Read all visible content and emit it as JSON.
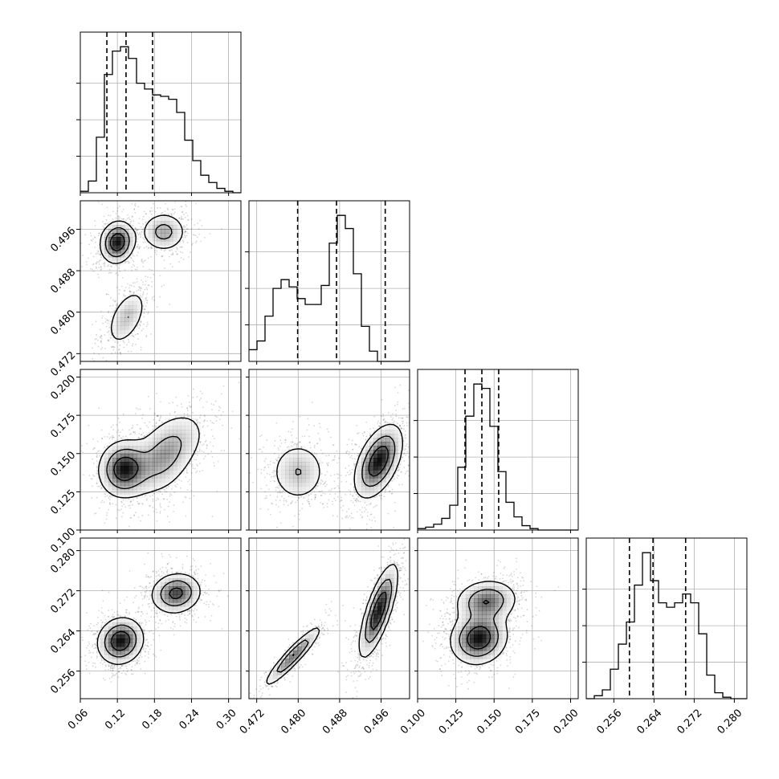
{
  "chart_data": {
    "type": "corner",
    "parameters": [
      {
        "index": 0,
        "range": [
          0.06,
          0.32
        ],
        "ticks": [
          0.06,
          0.12,
          0.18,
          0.24,
          0.3
        ],
        "tick_labels": [
          "0.06",
          "0.12",
          "0.18",
          "0.24",
          "0.30"
        ],
        "quantiles": [
          0.103,
          0.134,
          0.177
        ]
      },
      {
        "index": 1,
        "range": [
          0.4705,
          0.5015
        ],
        "ticks": [
          0.472,
          0.48,
          0.488,
          0.496
        ],
        "tick_labels": [
          "0.472",
          "0.480",
          "0.488",
          "0.496"
        ],
        "quantiles": [
          0.4799,
          0.4874,
          0.4968
        ]
      },
      {
        "index": 2,
        "range": [
          0.1,
          0.205
        ],
        "ticks": [
          0.1,
          0.125,
          0.15,
          0.175,
          0.2
        ],
        "tick_labels": [
          "0.100",
          "0.125",
          "0.150",
          "0.175",
          "0.200"
        ],
        "quantiles": [
          0.131,
          0.142,
          0.153
        ]
      },
      {
        "index": 3,
        "range": [
          0.2505,
          0.2825
        ],
        "ticks": [
          0.256,
          0.264,
          0.272,
          0.28
        ],
        "tick_labels": [
          "0.256",
          "0.264",
          "0.272",
          "0.280"
        ],
        "quantiles": [
          0.2591,
          0.2638,
          0.2703
        ]
      }
    ],
    "histograms": [
      {
        "param": 0,
        "bins": 20,
        "counts": [
          1,
          8,
          38,
          81,
          97,
          100,
          92,
          75,
          71,
          67,
          66,
          64,
          55,
          36,
          22,
          12,
          7,
          3,
          1,
          0
        ]
      },
      {
        "param": 1,
        "bins": 20,
        "counts": [
          8,
          14,
          31,
          50,
          56,
          51,
          43,
          39,
          39,
          52,
          81,
          100,
          91,
          60,
          24,
          7,
          0,
          0,
          0,
          0
        ]
      },
      {
        "param": 2,
        "bins": 20,
        "counts": [
          1,
          2,
          4,
          8,
          17,
          43,
          78,
          100,
          97,
          71,
          40,
          19,
          9,
          3,
          1,
          0,
          0,
          0,
          0,
          0
        ]
      },
      {
        "param": 3,
        "bins": 20,
        "counts": [
          0,
          2,
          6,
          20,
          37,
          52,
          77,
          99,
          80,
          65,
          62,
          65,
          71,
          65,
          44,
          16,
          4,
          1,
          0,
          0
        ]
      }
    ],
    "joint_components": {
      "p0_p1": [
        {
          "weight": 0.42,
          "mean": [
            0.12,
            0.4935
          ],
          "sd": [
            0.015,
            0.0022
          ],
          "corr": 0.1
        },
        {
          "weight": 0.3,
          "mean": [
            0.195,
            0.4955
          ],
          "sd": [
            0.02,
            0.0021
          ],
          "corr": 0.0
        },
        {
          "weight": 0.28,
          "mean": [
            0.135,
            0.479
          ],
          "sd": [
            0.018,
            0.0031
          ],
          "corr": 0.5
        }
      ],
      "p0_p2": [
        {
          "weight": 0.45,
          "mean": [
            0.13,
            0.14
          ],
          "sd": [
            0.022,
            0.01
          ],
          "corr": 0.05
        },
        {
          "weight": 0.35,
          "mean": [
            0.19,
            0.145
          ],
          "sd": [
            0.028,
            0.013
          ],
          "corr": 0.3
        },
        {
          "weight": 0.2,
          "mean": [
            0.22,
            0.16
          ],
          "sd": [
            0.03,
            0.012
          ],
          "corr": 0.3
        }
      ],
      "p1_p2": [
        {
          "weight": 0.35,
          "mean": [
            0.48,
            0.138
          ],
          "sd": [
            0.003,
            0.011
          ],
          "corr": 0.0
        },
        {
          "weight": 0.65,
          "mean": [
            0.4955,
            0.145
          ],
          "sd": [
            0.0025,
            0.013
          ],
          "corr": 0.5
        }
      ],
      "p0_p3": [
        {
          "weight": 0.55,
          "mean": [
            0.125,
            0.262
          ],
          "sd": [
            0.02,
            0.0025
          ],
          "corr": 0.1
        },
        {
          "weight": 0.45,
          "mean": [
            0.215,
            0.2715
          ],
          "sd": [
            0.022,
            0.0022
          ],
          "corr": 0.1
        }
      ],
      "p1_p3": [
        {
          "weight": 0.3,
          "mean": [
            0.479,
            0.259
          ],
          "sd": [
            0.003,
            0.0033
          ],
          "corr": 0.93
        },
        {
          "weight": 0.7,
          "mean": [
            0.4955,
            0.268
          ],
          "sd": [
            0.002,
            0.005
          ],
          "corr": 0.75
        }
      ],
      "p2_p3": [
        {
          "weight": 0.6,
          "mean": [
            0.14,
            0.2625
          ],
          "sd": [
            0.01,
            0.0028
          ],
          "corr": 0.1
        },
        {
          "weight": 0.4,
          "mean": [
            0.145,
            0.27
          ],
          "sd": [
            0.011,
            0.0023
          ],
          "corr": 0.1
        }
      ]
    },
    "panel_order": [
      [
        "p0_p1"
      ],
      [
        "p0_p2",
        "p1_p2"
      ],
      [
        "p0_p3",
        "p1_p3",
        "p2_p3"
      ]
    ],
    "contour_levels": [
      0.18,
      0.45,
      0.75
    ],
    "grid": true,
    "axes_labels": [
      "",
      "",
      "",
      ""
    ]
  }
}
